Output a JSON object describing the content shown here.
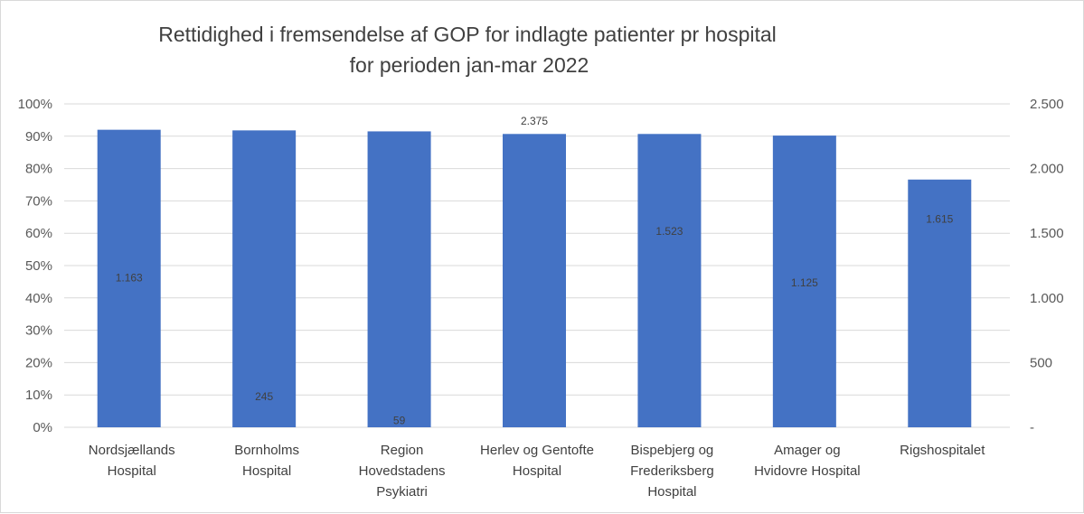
{
  "chart_data": {
    "type": "bar",
    "title_lines": [
      "Rettidighed i fremsendelse  af GOP for indlagte patienter  pr hospital",
      "for perioden jan-mar 2022"
    ],
    "categories": [
      [
        "Nordsjællands",
        "Hospital"
      ],
      [
        "Bornholms",
        "Hospital"
      ],
      [
        "Region",
        "Hovedstadens",
        "Psykiatri"
      ],
      [
        "Herlev og Gentofte",
        "Hospital"
      ],
      [
        "Bispebjerg og",
        "Frederiksberg",
        "Hospital"
      ],
      [
        "Amager og",
        "Hvidovre Hospital"
      ],
      [
        "Rigshospitalet"
      ]
    ],
    "series": [
      {
        "axis": "left",
        "values": [
          0.92,
          0.918,
          0.915,
          0.907,
          0.907,
          0.902,
          0.766
        ],
        "color": "#4472c4"
      },
      {
        "axis": "right",
        "values": [
          1163,
          245,
          59,
          2375,
          1523,
          1125,
          1615
        ],
        "labels": [
          "1.163",
          "245",
          "59",
          "2.375",
          "1.523",
          "1.125",
          "1.615"
        ]
      }
    ],
    "ylim_left": [
      0,
      1
    ],
    "ylim_right": [
      0,
      2500
    ],
    "left_ticks": [
      "0%",
      "10%",
      "20%",
      "30%",
      "40%",
      "50%",
      "60%",
      "70%",
      "80%",
      "90%",
      "100%"
    ],
    "right_ticks": [
      "-",
      "500",
      "1.000",
      "1.500",
      "2.000",
      "2.500"
    ],
    "right_tick_values": [
      0,
      500,
      1000,
      1500,
      2000,
      2500
    ],
    "grid": true,
    "legend": "none"
  }
}
